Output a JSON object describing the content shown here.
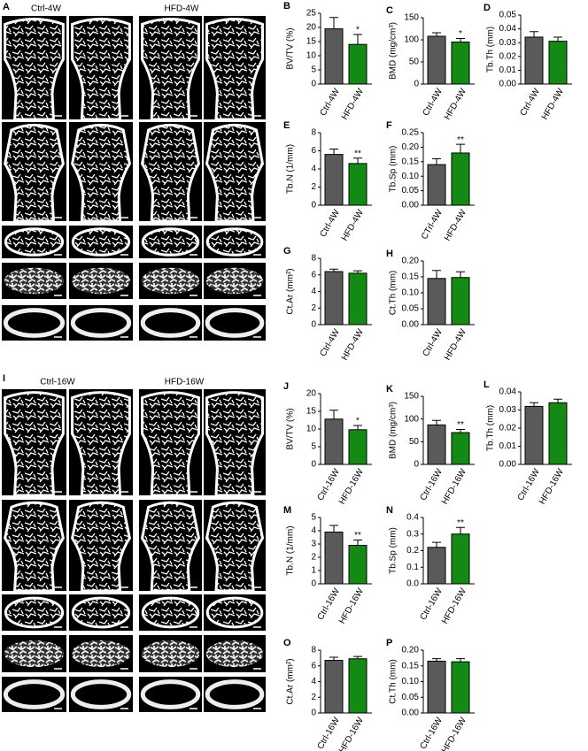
{
  "panels": {
    "A": {
      "label": "A",
      "groups": [
        "Ctrl-4W",
        "HFD-4W"
      ]
    },
    "I": {
      "label": "I",
      "groups": [
        "Ctrl-16W",
        "HFD-16W"
      ]
    }
  },
  "chart_data": [
    {
      "type": "bar",
      "label": "B",
      "ylabel": "BV/TV (%)",
      "categories": [
        "Ctrl-4W",
        "HFD-4W"
      ],
      "values": [
        19.5,
        14
      ],
      "errors": [
        4,
        3.5
      ],
      "colors": [
        "#5a5a5a",
        "#138a13"
      ],
      "annotations": [
        null,
        "*"
      ],
      "ylim": [
        0,
        25
      ],
      "yticks": [
        0,
        5,
        10,
        15,
        20,
        25
      ]
    },
    {
      "type": "bar",
      "label": "C",
      "ylabel": "BMD (mg/cm³)",
      "categories": [
        "Ctrl-4W",
        "HFD-4W"
      ],
      "values": [
        108,
        95
      ],
      "errors": [
        8,
        8
      ],
      "colors": [
        "#5a5a5a",
        "#138a13"
      ],
      "annotations": [
        null,
        "*"
      ],
      "ylim": [
        0,
        150
      ],
      "yticks": [
        0,
        50,
        100,
        150
      ]
    },
    {
      "type": "bar",
      "label": "D",
      "ylabel": "Tb.Th (mm)",
      "categories": [
        "Ctrl-4W",
        "HFD-4W"
      ],
      "values": [
        0.034,
        0.031
      ],
      "errors": [
        0.004,
        0.003
      ],
      "colors": [
        "#5a5a5a",
        "#138a13"
      ],
      "annotations": [
        null,
        null
      ],
      "ylim": [
        0,
        0.05
      ],
      "yticks": [
        {
          "value": 0,
          "label": "0.00"
        },
        {
          "value": 0.01,
          "label": "0.01"
        },
        {
          "value": 0.02,
          "label": "0.02"
        },
        {
          "value": 0.03,
          "label": "0.03"
        },
        {
          "value": 0.04,
          "label": "0.04"
        },
        {
          "value": 0.05,
          "label": "0.05"
        }
      ]
    },
    {
      "type": "bar",
      "label": "E",
      "ylabel": "Tb.N (1/mm)",
      "categories": [
        "Ctrl-4W",
        "HFD-4W"
      ],
      "values": [
        5.6,
        4.6
      ],
      "errors": [
        0.6,
        0.6
      ],
      "colors": [
        "#5a5a5a",
        "#138a13"
      ],
      "annotations": [
        null,
        "**"
      ],
      "ylim": [
        0,
        8
      ],
      "yticks": [
        0,
        2,
        4,
        6,
        8
      ]
    },
    {
      "type": "bar",
      "label": "F",
      "ylabel": "Tb.Sp (mm)",
      "categories": [
        "CTrl-4W",
        "HFD-4W"
      ],
      "values": [
        0.14,
        0.18
      ],
      "errors": [
        0.02,
        0.03
      ],
      "colors": [
        "#5a5a5a",
        "#138a13"
      ],
      "annotations": [
        null,
        "**"
      ],
      "ylim": [
        0,
        0.25
      ],
      "yticks": [
        {
          "value": 0,
          "label": "0.00"
        },
        {
          "value": 0.05,
          "label": "0.05"
        },
        {
          "value": 0.1,
          "label": "0.10"
        },
        {
          "value": 0.15,
          "label": "0.15"
        },
        {
          "value": 0.2,
          "label": "0.20"
        },
        {
          "value": 0.25,
          "label": "0.25"
        }
      ]
    },
    {
      "type": "bar",
      "label": "G",
      "ylabel": "Ct.Ar (mm²)",
      "categories": [
        "Ctrl-4W",
        "HFD-4W"
      ],
      "values": [
        6.4,
        6.2
      ],
      "errors": [
        0.3,
        0.3
      ],
      "colors": [
        "#5a5a5a",
        "#138a13"
      ],
      "annotations": [
        null,
        null
      ],
      "ylim": [
        0,
        8
      ],
      "yticks": [
        0,
        2,
        4,
        6,
        8
      ]
    },
    {
      "type": "bar",
      "label": "H",
      "ylabel": "Ct.Th (mm)",
      "categories": [
        "Ctrl-4W",
        "HFD-4W"
      ],
      "values": [
        0.145,
        0.148
      ],
      "errors": [
        0.025,
        0.018
      ],
      "colors": [
        "#5a5a5a",
        "#138a13"
      ],
      "annotations": [
        null,
        null
      ],
      "ylim": [
        0,
        0.2
      ],
      "yticks": [
        {
          "value": 0,
          "label": "0.00"
        },
        {
          "value": 0.05,
          "label": "0.05"
        },
        {
          "value": 0.1,
          "label": "0.10"
        },
        {
          "value": 0.15,
          "label": "0.15"
        },
        {
          "value": 0.2,
          "label": "0.20"
        }
      ]
    },
    {
      "type": "bar",
      "label": "J",
      "ylabel": "BV/TV (%)",
      "categories": [
        "Ctrl-16W",
        "HFD-16W"
      ],
      "values": [
        12.8,
        9.8
      ],
      "errors": [
        2.5,
        1.2
      ],
      "colors": [
        "#5a5a5a",
        "#138a13"
      ],
      "annotations": [
        null,
        "*"
      ],
      "ylim": [
        0,
        20
      ],
      "yticks": [
        0,
        5,
        10,
        15,
        20
      ]
    },
    {
      "type": "bar",
      "label": "K",
      "ylabel": "BMD (mg/cm³)",
      "categories": [
        "Ctrl-16W",
        "HFD-16W"
      ],
      "values": [
        87,
        70
      ],
      "errors": [
        10,
        7
      ],
      "colors": [
        "#5a5a5a",
        "#138a13"
      ],
      "annotations": [
        null,
        "**"
      ],
      "ylim": [
        0,
        150
      ],
      "yticks": [
        0,
        50,
        100,
        150
      ]
    },
    {
      "type": "bar",
      "label": "L",
      "ylabel": "Tb.Th (mm)",
      "categories": [
        "Ctrl-16W",
        "HFD-16W"
      ],
      "values": [
        0.032,
        0.034
      ],
      "errors": [
        0.002,
        0.002
      ],
      "colors": [
        "#5a5a5a",
        "#138a13"
      ],
      "annotations": [
        null,
        null
      ],
      "ylim": [
        0,
        0.04
      ],
      "yticks": [
        {
          "value": 0,
          "label": "0.00"
        },
        {
          "value": 0.01,
          "label": "0.01"
        },
        {
          "value": 0.02,
          "label": "0.02"
        },
        {
          "value": 0.03,
          "label": "0.03"
        },
        {
          "value": 0.04,
          "label": "0.04"
        }
      ]
    },
    {
      "type": "bar",
      "label": "M",
      "ylabel": "Tb.N (1/mm)",
      "categories": [
        "Ctrl-16W",
        "HFD-16W"
      ],
      "values": [
        3.9,
        2.9
      ],
      "errors": [
        0.5,
        0.4
      ],
      "colors": [
        "#5a5a5a",
        "#138a13"
      ],
      "annotations": [
        null,
        "**"
      ],
      "ylim": [
        0,
        5
      ],
      "yticks": [
        0,
        1,
        2,
        3,
        4,
        5
      ]
    },
    {
      "type": "bar",
      "label": "N",
      "ylabel": "Tb.Sp (mm)",
      "categories": [
        "Ctrl-16W",
        "HFD-16W"
      ],
      "values": [
        0.22,
        0.3
      ],
      "errors": [
        0.03,
        0.04
      ],
      "colors": [
        "#5a5a5a",
        "#138a13"
      ],
      "annotations": [
        null,
        "**"
      ],
      "ylim": [
        0,
        0.4
      ],
      "yticks": [
        {
          "value": 0,
          "label": "0.0"
        },
        0.1,
        0.2,
        0.3,
        0.4
      ]
    },
    {
      "type": "bar",
      "label": "O",
      "ylabel": "Ct.Ar (mm²)",
      "categories": [
        "Ctrl-16W",
        "HFD-16W"
      ],
      "values": [
        6.7,
        6.9
      ],
      "errors": [
        0.4,
        0.3
      ],
      "colors": [
        "#5a5a5a",
        "#138a13"
      ],
      "annotations": [
        null,
        null
      ],
      "ylim": [
        0,
        8
      ],
      "yticks": [
        0,
        2,
        4,
        6,
        8
      ]
    },
    {
      "type": "bar",
      "label": "P",
      "ylabel": "Ct.Th (mm)",
      "categories": [
        "Ctrl-16W",
        "HFD-16W"
      ],
      "values": [
        0.165,
        0.163
      ],
      "errors": [
        0.008,
        0.01
      ],
      "colors": [
        "#5a5a5a",
        "#138a13"
      ],
      "annotations": [
        null,
        null
      ],
      "ylim": [
        0,
        0.2
      ],
      "yticks": [
        {
          "value": 0,
          "label": "0.00"
        },
        {
          "value": 0.05,
          "label": "0.05"
        },
        {
          "value": 0.1,
          "label": "0.10"
        },
        {
          "value": 0.15,
          "label": "0.15"
        },
        {
          "value": 0.2,
          "label": "0.20"
        }
      ]
    }
  ]
}
